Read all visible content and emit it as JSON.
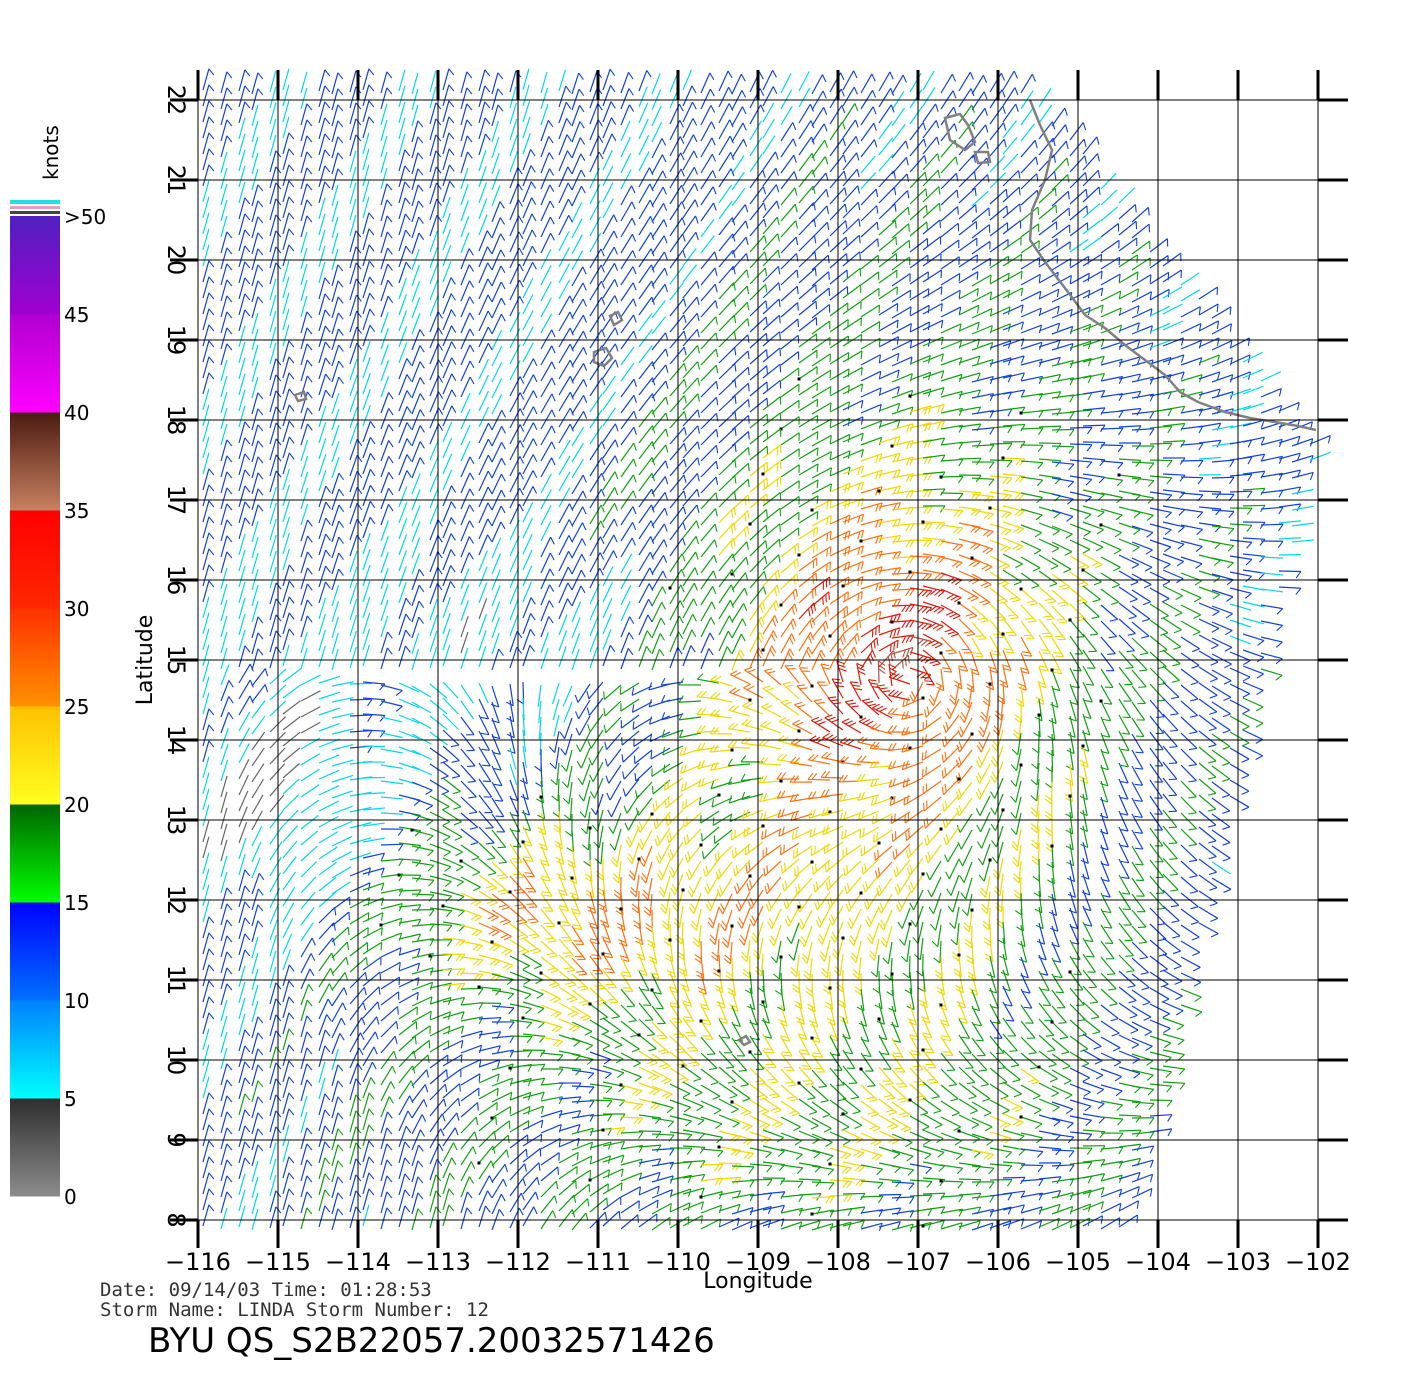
{
  "map": {
    "x_label": "Longitude",
    "y_label": "Latitude",
    "lon_ticks": [
      "−116",
      "−115",
      "−114",
      "−113",
      "−112",
      "−111",
      "−110",
      "−109",
      "−108",
      "−107",
      "−106",
      "−105",
      "−104",
      "−103",
      "−102"
    ],
    "lat_ticks": [
      "8",
      "9",
      "10",
      "11",
      "12",
      "13",
      "14",
      "15",
      "16",
      "17",
      "18",
      "19",
      "20",
      "21",
      "22"
    ],
    "lon_range": [
      -116,
      -102
    ],
    "lat_range": [
      8,
      22
    ],
    "grid": true,
    "wind_field": "vectors with barbs, colored by wind speed"
  },
  "colorbar": {
    "unit": "knots",
    "labels": [
      "0",
      "5",
      "10",
      "15",
      "20",
      "25",
      "30",
      "35",
      "40",
      "45",
      ">50"
    ],
    "bands": [
      {
        "from": 0,
        "to": 5,
        "top": "#2e2e2e",
        "bottom": "#8c8c8c"
      },
      {
        "from": 5,
        "to": 10,
        "top": "#0080ff",
        "bottom": "#00ffff"
      },
      {
        "from": 10,
        "to": 15,
        "top": "#0000ff",
        "bottom": "#0070ff"
      },
      {
        "from": 15,
        "to": 20,
        "top": "#006400",
        "bottom": "#00ff00"
      },
      {
        "from": 20,
        "to": 25,
        "top": "#ffc000",
        "bottom": "#ffff20"
      },
      {
        "from": 25,
        "to": 30,
        "top": "#ff3000",
        "bottom": "#ff9000"
      },
      {
        "from": 30,
        "to": 35,
        "top": "#ff0000",
        "bottom": "#ff2800"
      },
      {
        "from": 35,
        "to": 40,
        "top": "#4a1a10",
        "bottom": "#c88060"
      },
      {
        "from": 40,
        "to": 45,
        "top": "#b000d0",
        "bottom": "#ff00ff"
      },
      {
        "from": 45,
        "to": 50,
        "top": "#5020c0",
        "bottom": "#a000d0"
      }
    ]
  },
  "info": {
    "line1": "Date: 09/14/03   Time: 01:28:53",
    "line2": "Storm Name: LINDA   Storm Number: 12",
    "title": "BYU QS_S2B22057.20032571426"
  },
  "colors": {
    "grid": "#000000",
    "coast": "#808080"
  }
}
